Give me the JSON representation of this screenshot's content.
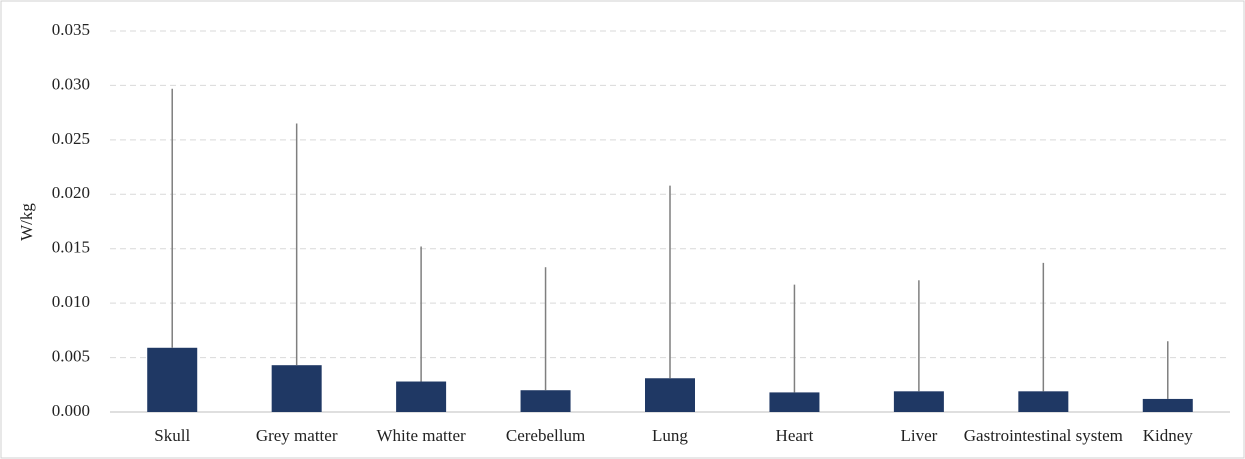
{
  "chart_data": {
    "type": "bar",
    "y_label": "W/kg",
    "categories": [
      "Skull",
      "Grey matter",
      "White matter",
      "Cerebellum",
      "Lung",
      "Heart",
      "Liver",
      "Gastrointestinal system",
      "Kidney"
    ],
    "values": [
      0.0059,
      0.0043,
      0.0028,
      0.002,
      0.0031,
      0.0018,
      0.0019,
      0.0019,
      0.0012
    ],
    "errors": [
      0.0238,
      0.0222,
      0.0124,
      0.0113,
      0.0177,
      0.0099,
      0.0102,
      0.0118,
      0.0053
    ],
    "color": "#1f3864",
    "error_color": "#7f7f7f",
    "ylim": [
      0,
      0.035
    ],
    "yticks": [
      {
        "value": 0,
        "label": "0.000"
      },
      {
        "value": 0.005,
        "label": "0.005"
      },
      {
        "value": 0.01,
        "label": "0.010"
      },
      {
        "value": 0.015,
        "label": "0.015"
      },
      {
        "value": 0.02,
        "label": "0.020"
      },
      {
        "value": 0.025,
        "label": "0.025"
      },
      {
        "value": 0.03,
        "label": "0.030"
      },
      {
        "value": 0.035,
        "label": "0.035"
      }
    ],
    "grid": true
  }
}
